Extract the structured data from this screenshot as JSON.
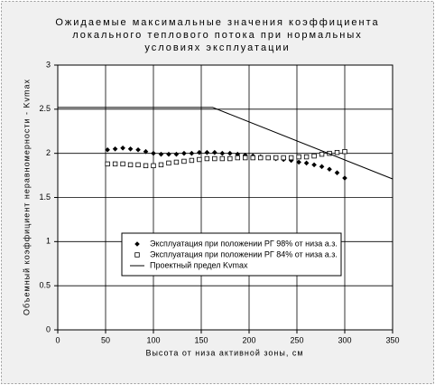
{
  "chart_data": {
    "type": "scatter",
    "title": [
      "Ожидаемые максимальные значения коэффициента",
      "локального теплового потока при нормальных",
      "условиях эксплуатации"
    ],
    "x_label": "Высота от низа активной зоны, см",
    "y_label": "Объемный коэффициент неравномерности - Kvmax",
    "xlim": [
      0,
      350
    ],
    "xticks": [
      0,
      50,
      100,
      150,
      200,
      250,
      300,
      350
    ],
    "ylim": [
      0,
      3
    ],
    "yticks": [
      0,
      0.5,
      1,
      1.5,
      2,
      2.5,
      3
    ],
    "grid": true,
    "series": [
      {
        "name": "Эксплуатация при положении РГ 98% от низа а.з.",
        "color": "#000000",
        "marker": "diamond",
        "x": [
          52,
          60,
          68,
          76,
          84,
          92,
          100,
          108,
          116,
          124,
          132,
          140,
          148,
          156,
          164,
          172,
          180,
          188,
          196,
          204,
          212,
          220,
          228,
          236,
          244,
          252,
          260,
          268,
          276,
          284,
          292,
          300
        ],
        "values": [
          2.04,
          2.05,
          2.06,
          2.05,
          2.04,
          2.02,
          2.0,
          1.99,
          1.99,
          1.99,
          2.0,
          2.0,
          2.01,
          2.01,
          2.01,
          2.0,
          2.0,
          1.99,
          1.98,
          1.97,
          1.96,
          1.95,
          1.94,
          1.93,
          1.92,
          1.9,
          1.89,
          1.87,
          1.85,
          1.82,
          1.78,
          1.72
        ]
      },
      {
        "name": "Эксплуатация при положении РГ 84% от низа а.з.",
        "color": "#000000",
        "marker": "square",
        "x": [
          52,
          60,
          68,
          76,
          84,
          92,
          100,
          108,
          116,
          124,
          132,
          140,
          148,
          156,
          164,
          172,
          180,
          188,
          196,
          204,
          212,
          220,
          228,
          236,
          244,
          252,
          260,
          268,
          276,
          284,
          292,
          300
        ],
        "values": [
          1.88,
          1.88,
          1.88,
          1.87,
          1.87,
          1.86,
          1.86,
          1.87,
          1.89,
          1.9,
          1.91,
          1.92,
          1.93,
          1.94,
          1.94,
          1.94,
          1.94,
          1.95,
          1.95,
          1.95,
          1.95,
          1.95,
          1.95,
          1.95,
          1.95,
          1.96,
          1.96,
          1.97,
          1.99,
          2.0,
          2.01,
          2.02
        ]
      },
      {
        "name": "Проектный предел Kvmax",
        "color": "#000000",
        "marker": "line",
        "x": [
          0,
          162,
          350
        ],
        "values": [
          2.52,
          2.52,
          1.71
        ]
      }
    ]
  }
}
